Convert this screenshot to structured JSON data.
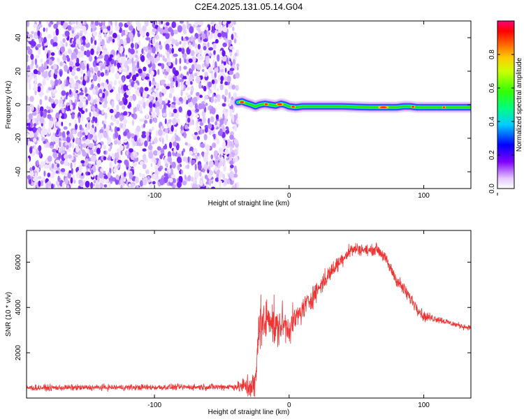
{
  "title": "C2E4.2025.131.05.14.G04",
  "chart_data": [
    {
      "type": "heatmap",
      "xlabel": "Height of straight line (km)",
      "ylabel": "Frequency (Hz)",
      "xlim": [
        -195,
        135
      ],
      "ylim": [
        -50,
        50
      ],
      "x_ticks": [
        -100,
        0,
        100
      ],
      "x_tick_labels": [
        "-100",
        "0",
        "100"
      ],
      "y_ticks": [
        -40,
        -20,
        0,
        20,
        40
      ],
      "y_tick_labels": [
        "-40",
        "-20",
        "0",
        "20",
        "40"
      ],
      "noise_region": {
        "x_from": -195,
        "x_to": -38,
        "y_from": -50,
        "y_to": 50
      },
      "signal_track": [
        [
          -38,
          1.5
        ],
        [
          -35,
          2
        ],
        [
          -32,
          1
        ],
        [
          -28,
          0
        ],
        [
          -25,
          -1
        ],
        [
          -22,
          0
        ],
        [
          -18,
          0.5
        ],
        [
          -14,
          0
        ],
        [
          -10,
          -0.5
        ],
        [
          -6,
          0.5
        ],
        [
          -3,
          0
        ],
        [
          0,
          -1
        ],
        [
          5,
          -1.5
        ],
        [
          10,
          -1
        ],
        [
          20,
          -1
        ],
        [
          30,
          -1
        ],
        [
          40,
          -1
        ],
        [
          50,
          -1.3
        ],
        [
          60,
          -1.5
        ],
        [
          70,
          -1.5
        ],
        [
          80,
          -1.5
        ],
        [
          85,
          -1
        ],
        [
          90,
          -1
        ],
        [
          95,
          -1.5
        ],
        [
          100,
          -1.5
        ],
        [
          110,
          -1.5
        ],
        [
          120,
          -1.5
        ],
        [
          135,
          -1.5
        ]
      ],
      "colorbar": {
        "label": "Normalized spectral amplitude",
        "range": [
          0,
          1
        ],
        "ticks": [
          0.0,
          0.2,
          0.4,
          0.6,
          0.8
        ],
        "tick_labels": [
          "0.0",
          "0.2",
          "0.4",
          "0.6",
          "0.8"
        ]
      }
    },
    {
      "type": "line",
      "xlabel": "Height of straight line (km)",
      "ylabel": "SNR (10 * v/v)",
      "xlim": [
        -195,
        135
      ],
      "ylim": [
        0,
        7400
      ],
      "x_ticks": [
        -100,
        0,
        100
      ],
      "x_tick_labels": [
        "-100",
        "0",
        "100"
      ],
      "y_ticks": [
        2000,
        4000,
        6000
      ],
      "y_tick_labels": [
        "2000",
        "4000",
        "6000"
      ],
      "series": [
        {
          "color": "#ee3333",
          "x": [
            -195,
            -160,
            -120,
            -80,
            -40,
            -25,
            -22,
            -18,
            -15,
            -10,
            -5,
            0,
            10,
            20,
            30,
            40,
            45,
            50,
            60,
            65,
            70,
            80,
            90,
            100,
            110,
            120,
            130,
            135
          ],
          "y": [
            450,
            460,
            470,
            480,
            500,
            520,
            3500,
            3200,
            3800,
            3000,
            3300,
            3100,
            3900,
            4700,
            5500,
            6200,
            6500,
            6600,
            6500,
            6600,
            6300,
            5200,
            4400,
            3600,
            3500,
            3300,
            3150,
            3100
          ],
          "noise_amplitude": [
            200,
            200,
            200,
            200,
            220,
            1200,
            1800,
            1500,
            1500,
            1400,
            1300,
            1000,
            800,
            700,
            600,
            500,
            500,
            400,
            350,
            350,
            400,
            450,
            450,
            350,
            250,
            200,
            180,
            150
          ]
        }
      ]
    }
  ]
}
